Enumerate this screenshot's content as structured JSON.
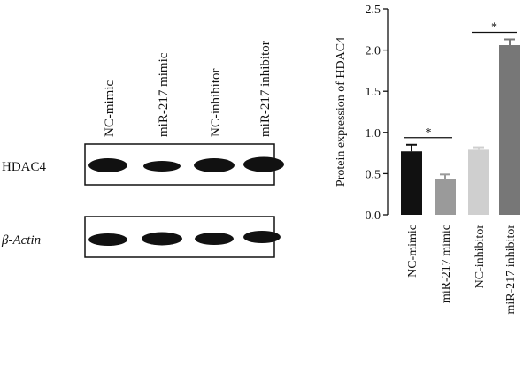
{
  "blot": {
    "lanes": [
      "NC-mimic",
      "miR-217 mimic",
      "NC-inhibitor",
      "miR-217 inhibitor"
    ],
    "rows": [
      "HDAC4",
      "β-Actin"
    ]
  },
  "chart_data": {
    "type": "bar",
    "ylabel": "Protein expression of HDAC4",
    "categories": [
      "NC-mimic",
      "miR-217 mimic",
      "NC-inhibitor",
      "miR-217 inhibitor"
    ],
    "values": [
      0.77,
      0.43,
      0.79,
      2.06
    ],
    "errors": [
      0.08,
      0.06,
      0.03,
      0.07
    ],
    "colors": [
      "#111111",
      "#9a9a9a",
      "#cfcfcf",
      "#777777"
    ],
    "ylim": [
      0,
      2.5
    ],
    "yticks": [
      {
        "value": 0,
        "label": "0.0"
      },
      0.5,
      {
        "value": 1,
        "label": "1.0"
      },
      1.5,
      {
        "value": 2,
        "label": "2.0"
      },
      2.5
    ],
    "annotations": [
      "*",
      "*"
    ]
  }
}
